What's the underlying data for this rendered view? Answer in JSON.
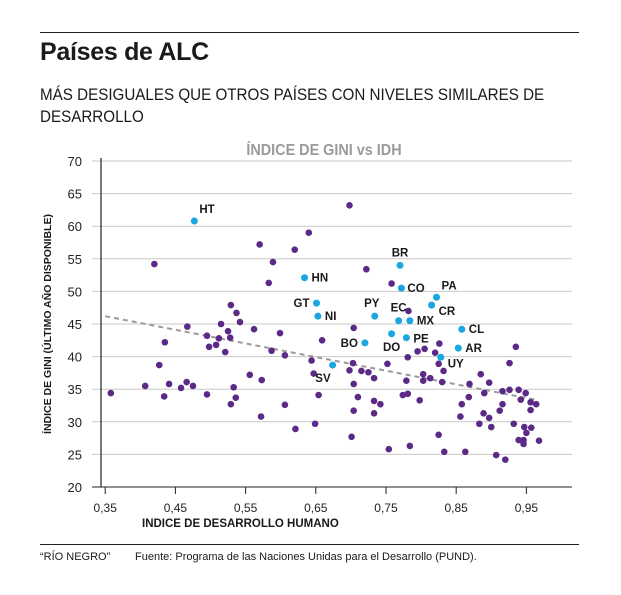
{
  "header": {
    "title": "Países de ALC",
    "subtitle": "MÁS DESIGUALES QUE OTROS PAÍSES CON NIVELES SIMILARES DE DESARROLLO"
  },
  "footer": {
    "source_label": "“RÍO NEGRO”",
    "source_text": "Fuente: Programa de las Naciones Unidas para el Desarrollo (PUND)."
  },
  "colors": {
    "highlight": "#1aa6e0",
    "other": "#5b2a86",
    "trend": "#9a9a9a",
    "grid": "#c8c8c8"
  },
  "chart_data": {
    "type": "scatter",
    "title": "ÍNDICE DE GINI vs IDH",
    "xlabel": "INDICE DE DESARROLLO HUMANO",
    "ylabel": "ÍNDICE DE GINI (ÚLTIMO AÑO DISPONIBLE)",
    "xlim": [
      0.344,
      1.015
    ],
    "ylim": [
      20,
      70
    ],
    "grid": "horizontal",
    "xticks": [
      0.35,
      0.45,
      0.55,
      0.65,
      0.75,
      0.85,
      0.95
    ],
    "xtick_labels": [
      "0,35",
      "0,45",
      "0,55",
      "0,65",
      "0,75",
      "0,85",
      "0,95"
    ],
    "yticks": [
      20,
      25,
      30,
      35,
      40,
      45,
      50,
      55,
      60,
      65,
      70
    ],
    "ytick_labels": [
      "20",
      "25",
      "30",
      "35",
      "40",
      "45",
      "50",
      "55",
      "60",
      "65",
      "70"
    ],
    "trendline": {
      "x": [
        0.35,
        0.967
      ],
      "y": [
        46.2,
        33.3
      ],
      "style": "dashed"
    },
    "highlighted": [
      {
        "label": "HT",
        "x": 0.477,
        "y": 60.8,
        "pos": "tr"
      },
      {
        "label": "HN",
        "x": 0.634,
        "y": 52.1,
        "pos": "r"
      },
      {
        "label": "GT",
        "x": 0.651,
        "y": 48.2,
        "pos": "l"
      },
      {
        "label": "NI",
        "x": 0.653,
        "y": 46.2,
        "pos": "r"
      },
      {
        "label": "BR",
        "x": 0.77,
        "y": 54.0,
        "pos": "t"
      },
      {
        "label": "CO",
        "x": 0.772,
        "y": 50.5,
        "pos": "tr"
      },
      {
        "label": "PA",
        "x": 0.822,
        "y": 49.1,
        "pos": "tr"
      },
      {
        "label": "CR",
        "x": 0.815,
        "y": 47.9,
        "pos": "br"
      },
      {
        "label": "PY",
        "x": 0.734,
        "y": 46.2,
        "pos": "t"
      },
      {
        "label": "EC",
        "x": 0.768,
        "y": 45.5,
        "pos": "tl"
      },
      {
        "label": "MX",
        "x": 0.784,
        "y": 45.5,
        "pos": "r"
      },
      {
        "label": "BO",
        "x": 0.72,
        "y": 42.1,
        "pos": "l"
      },
      {
        "label": "DO",
        "x": 0.758,
        "y": 43.5,
        "pos": "b"
      },
      {
        "label": "PE",
        "x": 0.779,
        "y": 42.9,
        "pos": "tr"
      },
      {
        "label": "CL",
        "x": 0.858,
        "y": 44.2,
        "pos": "r"
      },
      {
        "label": "AR",
        "x": 0.853,
        "y": 41.3,
        "pos": "r"
      },
      {
        "label": "UY",
        "x": 0.828,
        "y": 39.9,
        "pos": "br"
      },
      {
        "label": "SV",
        "x": 0.674,
        "y": 38.7,
        "pos": "bl"
      }
    ],
    "others": [
      [
        0.358,
        34.4
      ],
      [
        0.407,
        35.5
      ],
      [
        0.42,
        54.2
      ],
      [
        0.427,
        38.7
      ],
      [
        0.434,
        33.9
      ],
      [
        0.435,
        42.2
      ],
      [
        0.441,
        35.8
      ],
      [
        0.458,
        35.2
      ],
      [
        0.466,
        36.1
      ],
      [
        0.467,
        44.6
      ],
      [
        0.475,
        35.5
      ],
      [
        0.495,
        34.2
      ],
      [
        0.495,
        43.2
      ],
      [
        0.498,
        41.5
      ],
      [
        0.508,
        41.8
      ],
      [
        0.512,
        42.8
      ],
      [
        0.515,
        45.0
      ],
      [
        0.521,
        40.7
      ],
      [
        0.525,
        43.9
      ],
      [
        0.528,
        42.9
      ],
      [
        0.529,
        47.9
      ],
      [
        0.529,
        32.7
      ],
      [
        0.533,
        35.3
      ],
      [
        0.536,
        33.7
      ],
      [
        0.537,
        46.7
      ],
      [
        0.542,
        45.3
      ],
      [
        0.556,
        37.2
      ],
      [
        0.562,
        44.2
      ],
      [
        0.57,
        57.2
      ],
      [
        0.572,
        30.8
      ],
      [
        0.573,
        36.4
      ],
      [
        0.583,
        51.3
      ],
      [
        0.587,
        40.9
      ],
      [
        0.589,
        54.5
      ],
      [
        0.599,
        43.6
      ],
      [
        0.606,
        40.2
      ],
      [
        0.606,
        32.6
      ],
      [
        0.62,
        56.4
      ],
      [
        0.621,
        28.9
      ],
      [
        0.64,
        59.0
      ],
      [
        0.644,
        39.4
      ],
      [
        0.647,
        37.4
      ],
      [
        0.649,
        29.7
      ],
      [
        0.654,
        34.1
      ],
      [
        0.659,
        42.5
      ],
      [
        0.698,
        63.2
      ],
      [
        0.698,
        37.9
      ],
      [
        0.701,
        27.7
      ],
      [
        0.703,
        39.0
      ],
      [
        0.704,
        44.4
      ],
      [
        0.704,
        35.8
      ],
      [
        0.704,
        31.7
      ],
      [
        0.71,
        33.8
      ],
      [
        0.715,
        37.8
      ],
      [
        0.722,
        53.4
      ],
      [
        0.725,
        37.6
      ],
      [
        0.733,
        36.7
      ],
      [
        0.733,
        33.2
      ],
      [
        0.733,
        31.3
      ],
      [
        0.742,
        32.7
      ],
      [
        0.752,
        38.9
      ],
      [
        0.754,
        25.8
      ],
      [
        0.758,
        51.2
      ],
      [
        0.774,
        34.1
      ],
      [
        0.779,
        36.3
      ],
      [
        0.781,
        39.9
      ],
      [
        0.781,
        34.3
      ],
      [
        0.782,
        47.0
      ],
      [
        0.784,
        26.3
      ],
      [
        0.795,
        40.8
      ],
      [
        0.798,
        33.3
      ],
      [
        0.803,
        37.3
      ],
      [
        0.803,
        36.3
      ],
      [
        0.805,
        41.2
      ],
      [
        0.813,
        36.7
      ],
      [
        0.82,
        40.6
      ],
      [
        0.825,
        38.9
      ],
      [
        0.825,
        28.0
      ],
      [
        0.826,
        42.0
      ],
      [
        0.83,
        36.1
      ],
      [
        0.832,
        37.8
      ],
      [
        0.833,
        25.4
      ],
      [
        0.856,
        30.8
      ],
      [
        0.858,
        32.7
      ],
      [
        0.863,
        25.4
      ],
      [
        0.868,
        33.8
      ],
      [
        0.869,
        35.8
      ],
      [
        0.883,
        29.7
      ],
      [
        0.885,
        37.3
      ],
      [
        0.889,
        31.3
      ],
      [
        0.89,
        34.4
      ],
      [
        0.897,
        36.0
      ],
      [
        0.897,
        30.6
      ],
      [
        0.9,
        29.2
      ],
      [
        0.907,
        24.9
      ],
      [
        0.912,
        31.7
      ],
      [
        0.916,
        34.7
      ],
      [
        0.916,
        32.7
      ],
      [
        0.92,
        24.2
      ],
      [
        0.926,
        39.0
      ],
      [
        0.926,
        34.9
      ],
      [
        0.932,
        29.7
      ],
      [
        0.935,
        41.5
      ],
      [
        0.939,
        34.9
      ],
      [
        0.939,
        27.2
      ],
      [
        0.942,
        33.4
      ],
      [
        0.946,
        27.2
      ],
      [
        0.946,
        26.6
      ],
      [
        0.947,
        29.2
      ],
      [
        0.949,
        34.4
      ],
      [
        0.95,
        28.3
      ],
      [
        0.956,
        33.0
      ],
      [
        0.956,
        31.8
      ],
      [
        0.957,
        29.1
      ],
      [
        0.964,
        32.7
      ],
      [
        0.968,
        27.1
      ]
    ]
  }
}
